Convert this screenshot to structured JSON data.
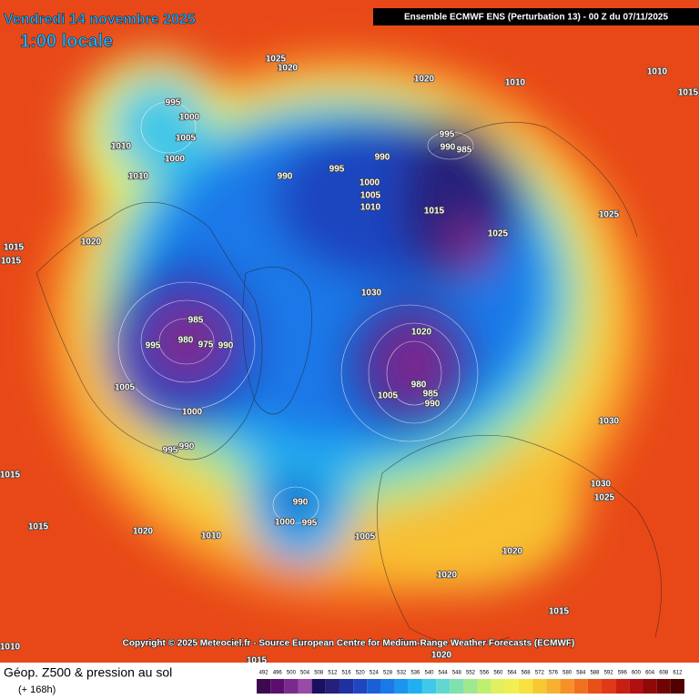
{
  "header": {
    "title": "Vendredi 14 novembre 2025",
    "time": "1:00 locale",
    "model": "Ensemble ECMWF ENS  (Perturbation 13)  -  00 Z du 07/11/2025"
  },
  "copyright": "Copyright © 2025 Meteociel.fr - Source European Centre for Medium-Range Weather Forecasts (ECMWF)",
  "legend": {
    "title": "Géop. Z500 & pression au sol",
    "subtitle": "(+ 168h)",
    "scale": [
      492,
      496,
      500,
      504,
      508,
      512,
      516,
      520,
      524,
      528,
      532,
      536,
      540,
      544,
      548,
      552,
      556,
      560,
      564,
      568,
      572,
      576,
      580,
      584,
      588,
      592,
      596,
      600,
      604,
      608,
      612
    ],
    "colors": [
      "#3c0a4c",
      "#5a0f6e",
      "#7a2a8e",
      "#9a4aa8",
      "#1a1060",
      "#25207a",
      "#2030a0",
      "#1f45c0",
      "#1a5fd8",
      "#1a78e8",
      "#1a95f0",
      "#20b0f0",
      "#40c8e8",
      "#60d8d0",
      "#80e0b0",
      "#a0e890",
      "#c0ee70",
      "#e0f060",
      "#f0f050",
      "#f8e040",
      "#f8c830",
      "#f8b030",
      "#f89028",
      "#f07020",
      "#e85018",
      "#e03818",
      "#c82010",
      "#b01010",
      "#900808",
      "#700404",
      "#500000"
    ]
  },
  "isobar_labels": [
    1025,
    1020,
    1020,
    1010,
    1010,
    1015,
    995,
    1000,
    1005,
    1010,
    1000,
    1010,
    995,
    990,
    985,
    990,
    995,
    990,
    1000,
    1005,
    1010,
    1015,
    1025,
    1025,
    1015,
    1015,
    1020,
    1030,
    985,
    980,
    975,
    990,
    995,
    1005,
    1000,
    995,
    990,
    1020,
    980,
    985,
    990,
    1005,
    990,
    995,
    1000,
    1005,
    1010,
    1020,
    1015,
    1015,
    1020,
    1020,
    1015,
    1010,
    1020,
    1015,
    1030,
    1025,
    1030
  ]
}
